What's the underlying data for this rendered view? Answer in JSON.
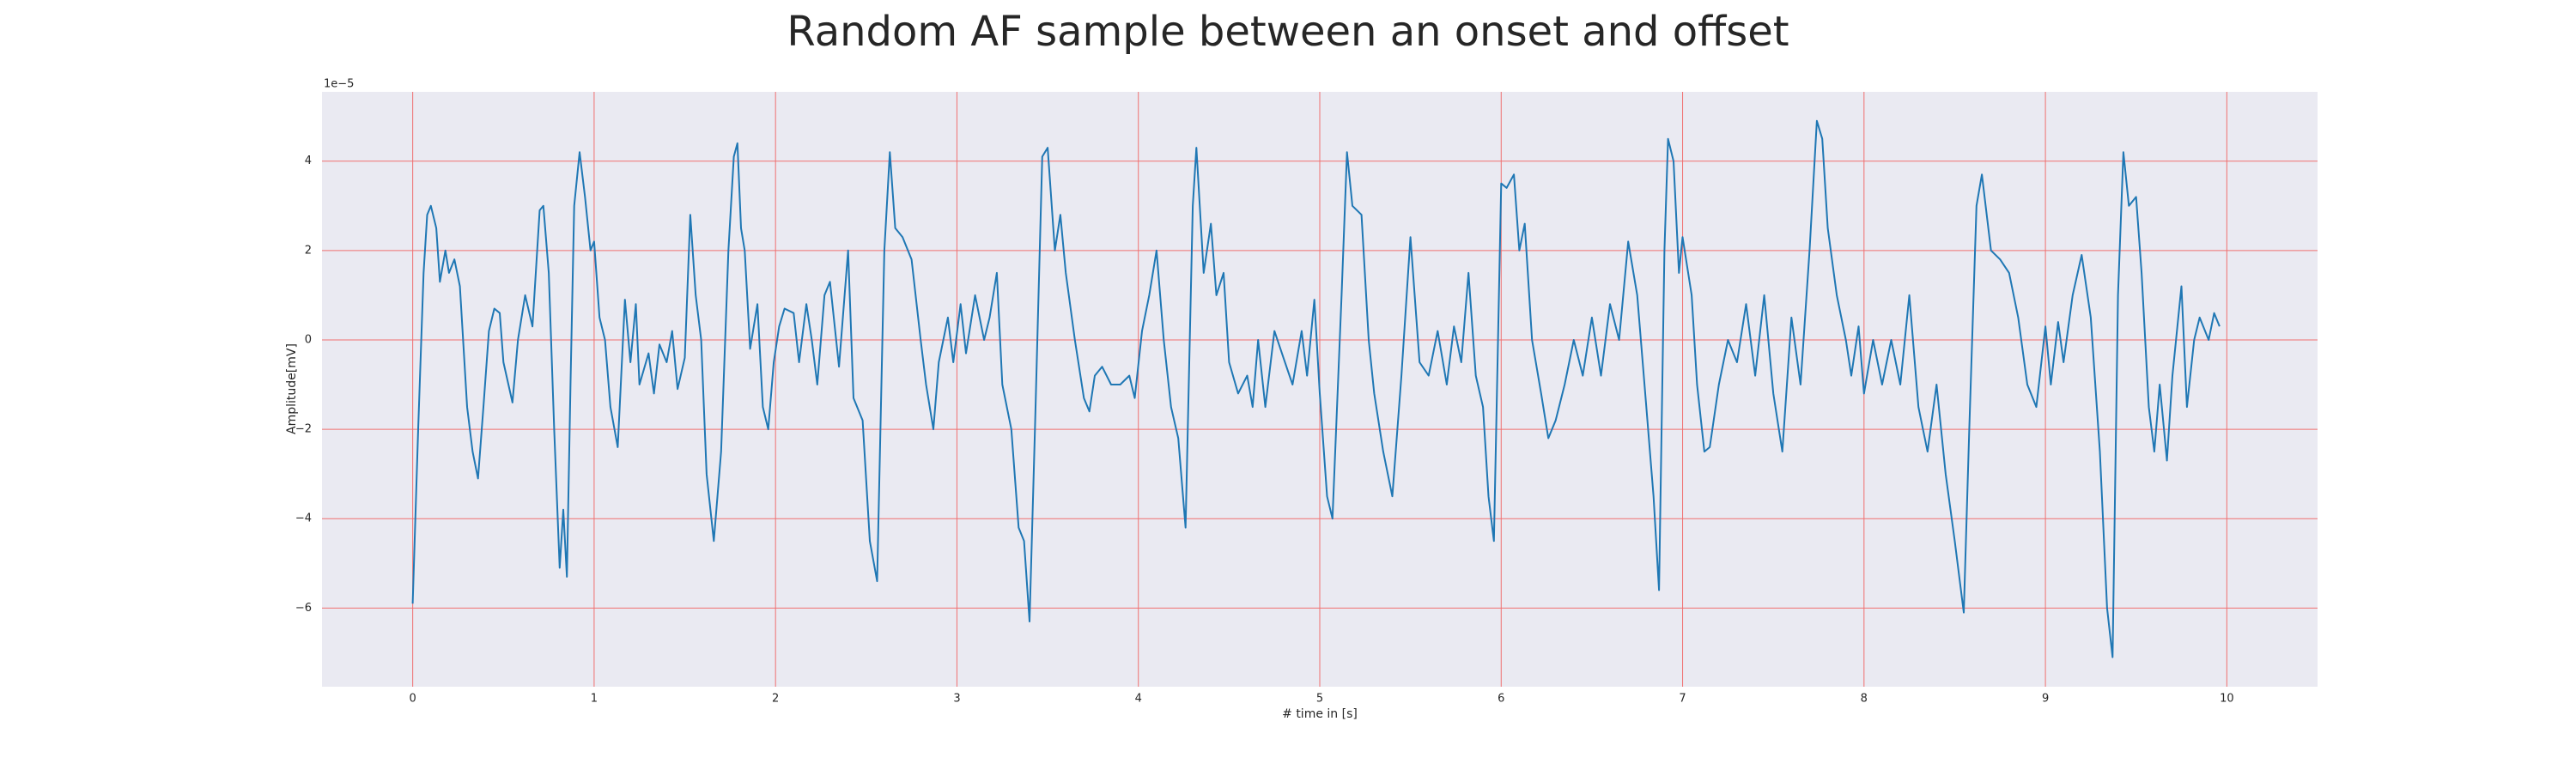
{
  "chart_data": {
    "type": "line",
    "title": "Random AF sample between an onset and offset",
    "xlabel": "# time in [s]",
    "ylabel": "Amplitude[mV]",
    "y_offset_label": "1e−5",
    "xlim": [
      -0.5,
      10.5
    ],
    "ylim": [
      -7.76,
      5.55
    ],
    "xticks": [
      0,
      1,
      2,
      3,
      4,
      5,
      6,
      7,
      8,
      9,
      10
    ],
    "yticks": [
      {
        "value": -6,
        "label": "−6"
      },
      {
        "value": -4,
        "label": "−4"
      },
      {
        "value": -2,
        "label": "−2"
      },
      0,
      2,
      4
    ],
    "grid": true,
    "grid_color": "#f07070",
    "background": "#eaeaf2",
    "series": [
      {
        "color": "#1f77b4",
        "x": [
          0,
          0.03,
          0.06,
          0.08,
          0.1,
          0.13,
          0.15,
          0.18,
          0.2,
          0.23,
          0.26,
          0.3,
          0.33,
          0.36,
          0.39,
          0.42,
          0.45,
          0.48,
          0.5,
          0.55,
          0.58,
          0.62,
          0.66,
          0.7,
          0.72,
          0.75,
          0.78,
          0.81,
          0.83,
          0.85,
          0.87,
          0.89,
          0.92,
          0.95,
          0.98,
          1.0,
          1.03,
          1.06,
          1.09,
          1.13,
          1.17,
          1.2,
          1.23,
          1.25,
          1.3,
          1.33,
          1.36,
          1.4,
          1.43,
          1.46,
          1.5,
          1.53,
          1.56,
          1.59,
          1.62,
          1.66,
          1.7,
          1.74,
          1.77,
          1.79,
          1.81,
          1.83,
          1.86,
          1.9,
          1.93,
          1.96,
          1.99,
          2.02,
          2.05,
          2.1,
          2.13,
          2.17,
          2.2,
          2.23,
          2.27,
          2.3,
          2.35,
          2.4,
          2.43,
          2.48,
          2.52,
          2.56,
          2.6,
          2.63,
          2.66,
          2.7,
          2.75,
          2.8,
          2.83,
          2.87,
          2.9,
          2.95,
          2.98,
          3.02,
          3.05,
          3.1,
          3.15,
          3.18,
          3.22,
          3.25,
          3.3,
          3.34,
          3.37,
          3.4,
          3.43,
          3.47,
          3.5,
          3.54,
          3.57,
          3.6,
          3.65,
          3.7,
          3.73,
          3.76,
          3.8,
          3.85,
          3.9,
          3.95,
          3.98,
          4.02,
          4.06,
          4.1,
          4.14,
          4.18,
          4.22,
          4.26,
          4.3,
          4.32,
          4.36,
          4.4,
          4.43,
          4.47,
          4.5,
          4.55,
          4.6,
          4.63,
          4.66,
          4.7,
          4.75,
          4.8,
          4.85,
          4.9,
          4.93,
          4.97,
          5.0,
          5.04,
          5.07,
          5.12,
          5.15,
          5.18,
          5.23,
          5.27,
          5.3,
          5.35,
          5.4,
          5.45,
          5.5,
          5.55,
          5.6,
          5.65,
          5.7,
          5.74,
          5.78,
          5.82,
          5.86,
          5.9,
          5.93,
          5.96,
          6.0,
          6.03,
          6.07,
          6.1,
          6.13,
          6.17,
          6.22,
          6.26,
          6.3,
          6.35,
          6.4,
          6.45,
          6.5,
          6.55,
          6.6,
          6.65,
          6.7,
          6.75,
          6.8,
          6.84,
          6.87,
          6.9,
          6.92,
          6.95,
          6.98,
          7.0,
          7.05,
          7.08,
          7.12,
          7.15,
          7.2,
          7.25,
          7.3,
          7.35,
          7.4,
          7.45,
          7.5,
          7.55,
          7.6,
          7.65,
          7.7,
          7.74,
          7.77,
          7.8,
          7.85,
          7.9,
          7.93,
          7.97,
          8.0,
          8.05,
          8.1,
          8.15,
          8.2,
          8.25,
          8.3,
          8.35,
          8.4,
          8.45,
          8.5,
          8.55,
          8.58,
          8.62,
          8.65,
          8.7,
          8.75,
          8.8,
          8.85,
          8.9,
          8.95,
          9.0,
          9.03,
          9.07,
          9.1,
          9.15,
          9.2,
          9.25,
          9.3,
          9.34,
          9.37,
          9.4,
          9.43,
          9.46,
          9.5,
          9.53,
          9.57,
          9.6,
          9.63,
          9.67,
          9.7,
          9.75,
          9.78,
          9.82,
          9.85,
          9.9,
          9.93,
          9.96
        ],
        "values": [
          -5.9,
          -2,
          1.5,
          2.8,
          3.0,
          2.5,
          1.3,
          2.0,
          1.5,
          1.8,
          1.2,
          -1.5,
          -2.5,
          -3.1,
          -1.5,
          0.2,
          0.7,
          0.6,
          -0.5,
          -1.4,
          0.0,
          1.0,
          0.3,
          2.9,
          3.0,
          1.5,
          -2,
          -5.1,
          -3.8,
          -5.3,
          -1,
          3,
          4.2,
          3.2,
          2.0,
          2.2,
          0.5,
          0.0,
          -1.5,
          -2.4,
          0.9,
          -0.5,
          0.8,
          -1.0,
          -0.3,
          -1.2,
          -0.1,
          -0.5,
          0.2,
          -1.1,
          -0.4,
          2.8,
          1.0,
          0.0,
          -3.0,
          -4.5,
          -2.5,
          2.0,
          4.1,
          4.4,
          2.5,
          2.0,
          -0.2,
          0.8,
          -1.5,
          -2.0,
          -0.5,
          0.3,
          0.7,
          0.6,
          -0.5,
          0.8,
          0.0,
          -1.0,
          1.0,
          1.3,
          -0.6,
          2.0,
          -1.3,
          -1.8,
          -4.5,
          -5.4,
          2.0,
          4.2,
          2.5,
          2.3,
          1.8,
          0.0,
          -1.0,
          -2.0,
          -0.5,
          0.5,
          -0.5,
          0.8,
          -0.3,
          1.0,
          0.0,
          0.5,
          1.5,
          -1.0,
          -2.0,
          -4.2,
          -4.5,
          -6.3,
          -2,
          4.1,
          4.3,
          2.0,
          2.8,
          1.5,
          0.0,
          -1.3,
          -1.6,
          -0.8,
          -0.6,
          -1.0,
          -1.0,
          -0.8,
          -1.3,
          0.2,
          1.0,
          2.0,
          0.0,
          -1.5,
          -2.2,
          -4.2,
          3.0,
          4.3,
          1.5,
          2.6,
          1.0,
          1.5,
          -0.5,
          -1.2,
          -0.8,
          -1.5,
          0.0,
          -1.5,
          0.2,
          -0.4,
          -1.0,
          0.2,
          -0.8,
          0.9,
          -1.2,
          -3.5,
          -4.0,
          1.0,
          4.2,
          3.0,
          2.8,
          0.0,
          -1.2,
          -2.5,
          -3.5,
          -0.8,
          2.3,
          -0.5,
          -0.8,
          0.2,
          -1.0,
          0.3,
          -0.5,
          1.5,
          -0.8,
          -1.5,
          -3.5,
          -4.5,
          3.5,
          3.4,
          3.7,
          2.0,
          2.6,
          0.0,
          -1.2,
          -2.2,
          -1.8,
          -1.0,
          0.0,
          -0.8,
          0.5,
          -0.8,
          0.8,
          0.0,
          2.2,
          1.0,
          -1.5,
          -3.5,
          -5.6,
          2.0,
          4.5,
          4.0,
          1.5,
          2.3,
          1.0,
          -1.0,
          -2.5,
          -2.4,
          -1.0,
          0.0,
          -0.5,
          0.8,
          -0.8,
          1.0,
          -1.2,
          -2.5,
          0.5,
          -1.0,
          2.0,
          4.9,
          4.5,
          2.5,
          1.0,
          0.0,
          -0.8,
          0.3,
          -1.2,
          0.0,
          -1.0,
          0.0,
          -1.0,
          1.0,
          -1.5,
          -2.5,
          -1.0,
          -3.0,
          -4.5,
          -6.1,
          -2.0,
          3.0,
          3.7,
          2.0,
          1.8,
          1.5,
          0.5,
          -1.0,
          -1.5,
          0.3,
          -1.0,
          0.4,
          -0.5,
          1.0,
          1.9,
          0.5,
          -2.5,
          -6.0,
          -7.1,
          1.0,
          4.2,
          3.0,
          3.2,
          1.5,
          -1.5,
          -2.5,
          -1.0,
          -2.7,
          -0.8,
          1.2,
          -1.5,
          0.0,
          0.5,
          0.0,
          0.6,
          0.3
        ]
      }
    ]
  }
}
